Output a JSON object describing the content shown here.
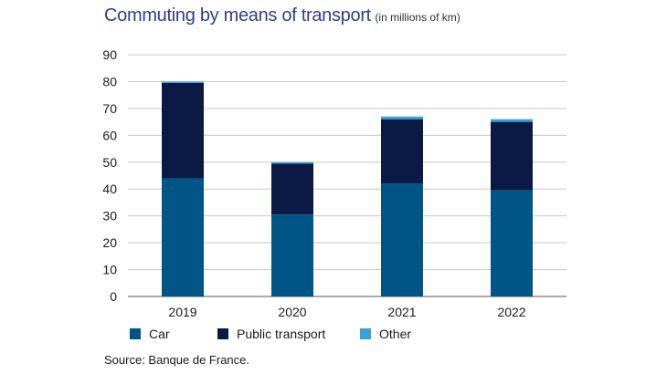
{
  "chart_data": {
    "type": "bar",
    "stacked": true,
    "title": "Commuting by means of transport",
    "subtitle": "(in millions of km)",
    "categories": [
      "2019",
      "2020",
      "2021",
      "2022"
    ],
    "series": [
      {
        "name": "Car",
        "values": [
          44,
          30.5,
          42,
          39.5
        ],
        "color": "#005587"
      },
      {
        "name": "Public transport",
        "values": [
          35.5,
          19,
          24,
          25.5
        ],
        "color": "#0a1a45"
      },
      {
        "name": "Other",
        "values": [
          0.5,
          0.5,
          1,
          1
        ],
        "color": "#3aa0d8"
      }
    ],
    "ylim": [
      0,
      90
    ],
    "yticks": [
      0,
      10,
      20,
      30,
      40,
      50,
      60,
      70,
      80,
      90
    ],
    "grid": true,
    "legend": "bottom",
    "source": "Source: Banque de France."
  }
}
